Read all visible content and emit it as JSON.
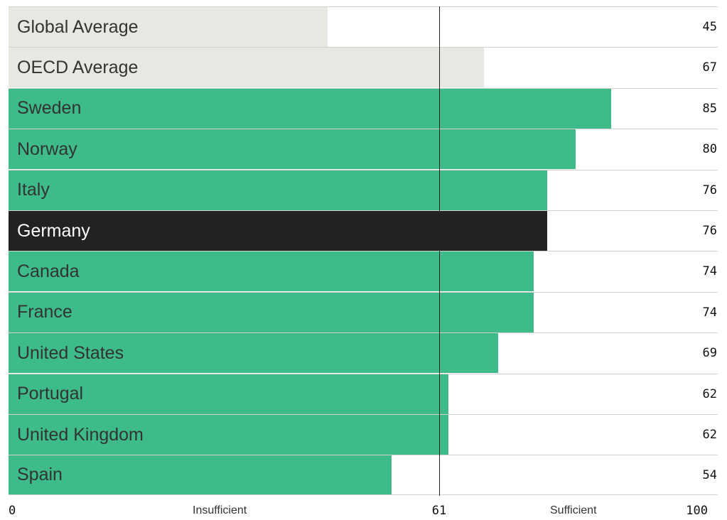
{
  "chart_data": {
    "type": "bar",
    "orientation": "horizontal",
    "categories": [
      "Global Average",
      "OECD Average",
      "Sweden",
      "Norway",
      "Italy",
      "Germany",
      "Canada",
      "France",
      "United States",
      "Portugal",
      "United Kingdom",
      "Spain"
    ],
    "values": [
      45,
      67,
      85,
      80,
      76,
      76,
      74,
      74,
      69,
      62,
      62,
      54
    ],
    "xlim": [
      0,
      100
    ],
    "reference_line": {
      "value": 61,
      "label": "61"
    },
    "axis": {
      "min_label": "0",
      "max_label": "100",
      "left_label": "Insufficient",
      "right_label": "Sufficient"
    },
    "colors": {
      "average": "#e8e7e2",
      "country": "#3dbb88",
      "highlight": "#222222",
      "label_default": "#333333",
      "label_highlight": "#ffffff"
    },
    "bar_styles": [
      "average",
      "average",
      "country",
      "country",
      "country",
      "highlight",
      "country",
      "country",
      "country",
      "country",
      "country",
      "country"
    ]
  }
}
